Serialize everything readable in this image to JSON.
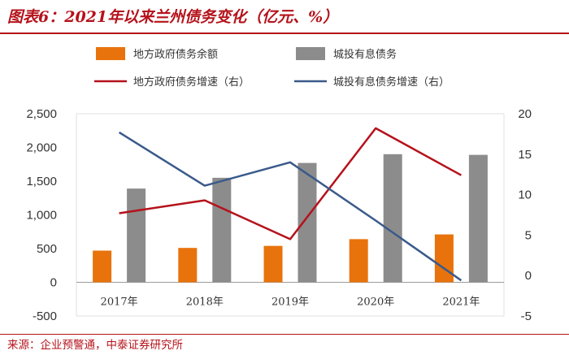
{
  "title": "图表6：2021年以来兰州债务变化（亿元、%）",
  "source": "来源：企业预警通，中泰证券研究所",
  "chart_data": {
    "type": "bar",
    "categories": [
      "2017年",
      "2018年",
      "2019年",
      "2020年",
      "2021年"
    ],
    "series": [
      {
        "name": "地方政府债务余额",
        "type": "bar",
        "axis": "left",
        "color": "#e8730c",
        "values": [
          470,
          510,
          540,
          640,
          710
        ]
      },
      {
        "name": "城投有息债务",
        "type": "bar",
        "axis": "left",
        "color": "#8c8c8c",
        "values": [
          1390,
          1550,
          1770,
          1900,
          1890
        ]
      },
      {
        "name": "地方政府债务增速（右）",
        "type": "line",
        "axis": "right",
        "color": "#b5121b",
        "values": [
          7.7,
          9.3,
          4.5,
          18.2,
          12.4
        ]
      },
      {
        "name": "城投有息债务增速（右）",
        "type": "line",
        "axis": "right",
        "color": "#3a5a8a",
        "values": [
          17.7,
          11.1,
          14.0,
          6.8,
          -0.6
        ]
      }
    ],
    "y_left": {
      "min": -500,
      "max": 2500,
      "ticks": [
        -500,
        0,
        500,
        1000,
        1500,
        2000,
        2500
      ],
      "tick_labels": [
        "-500",
        "0",
        "500",
        "1,000",
        "1,500",
        "2,000",
        "2,500"
      ]
    },
    "y_right": {
      "min": -5,
      "max": 20,
      "ticks": [
        -5,
        0,
        5,
        10,
        15,
        20
      ],
      "tick_labels": [
        "-5",
        "0",
        "5",
        "10",
        "15",
        "20"
      ]
    },
    "legend_position": "top",
    "grid": false
  }
}
